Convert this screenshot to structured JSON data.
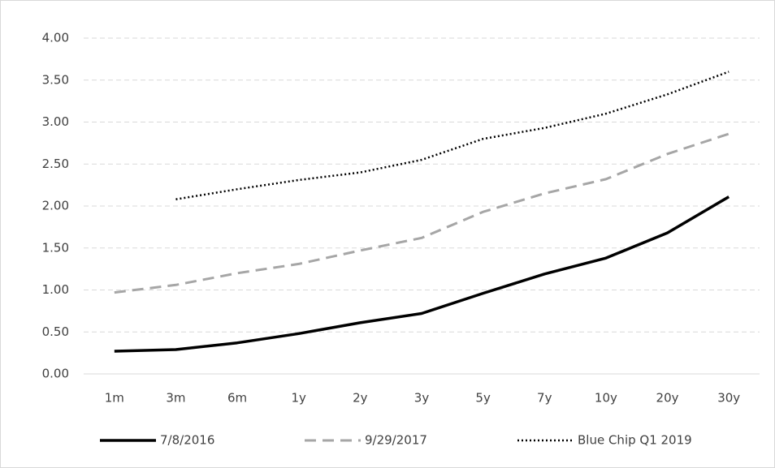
{
  "chart_data": {
    "type": "line",
    "categories": [
      "1m",
      "3m",
      "6m",
      "1y",
      "2y",
      "3y",
      "5y",
      "7y",
      "10y",
      "20y",
      "30y"
    ],
    "series": [
      {
        "name": "7/8/2016",
        "color": "#000000",
        "style": "solid",
        "values": [
          0.27,
          0.29,
          0.37,
          0.48,
          0.61,
          0.72,
          0.96,
          1.19,
          1.38,
          1.68,
          2.11
        ]
      },
      {
        "name": "9/29/2017",
        "color": "#a6a6a6",
        "style": "dash",
        "values": [
          0.97,
          1.06,
          1.2,
          1.31,
          1.47,
          1.62,
          1.93,
          2.15,
          2.32,
          2.62,
          2.86
        ]
      },
      {
        "name": "Blue Chip Q1 2019",
        "color": "#000000",
        "style": "dot",
        "values": [
          null,
          2.08,
          2.2,
          2.31,
          2.4,
          2.55,
          2.8,
          2.93,
          3.1,
          3.33,
          3.6
        ]
      }
    ],
    "ylim": [
      0,
      4
    ],
    "yticks": [
      {
        "value": 0,
        "label": "0.00"
      },
      {
        "value": 0.5,
        "label": "0.50"
      },
      {
        "value": 1,
        "label": "1.00"
      },
      {
        "value": 1.5,
        "label": "1.50"
      },
      {
        "value": 2,
        "label": "2.00"
      },
      {
        "value": 2.5,
        "label": "2.50"
      },
      {
        "value": 3,
        "label": "3.00"
      },
      {
        "value": 3.5,
        "label": "3.50"
      },
      {
        "value": 4,
        "label": "4.00"
      }
    ],
    "grid": true,
    "legend": "bottom"
  }
}
